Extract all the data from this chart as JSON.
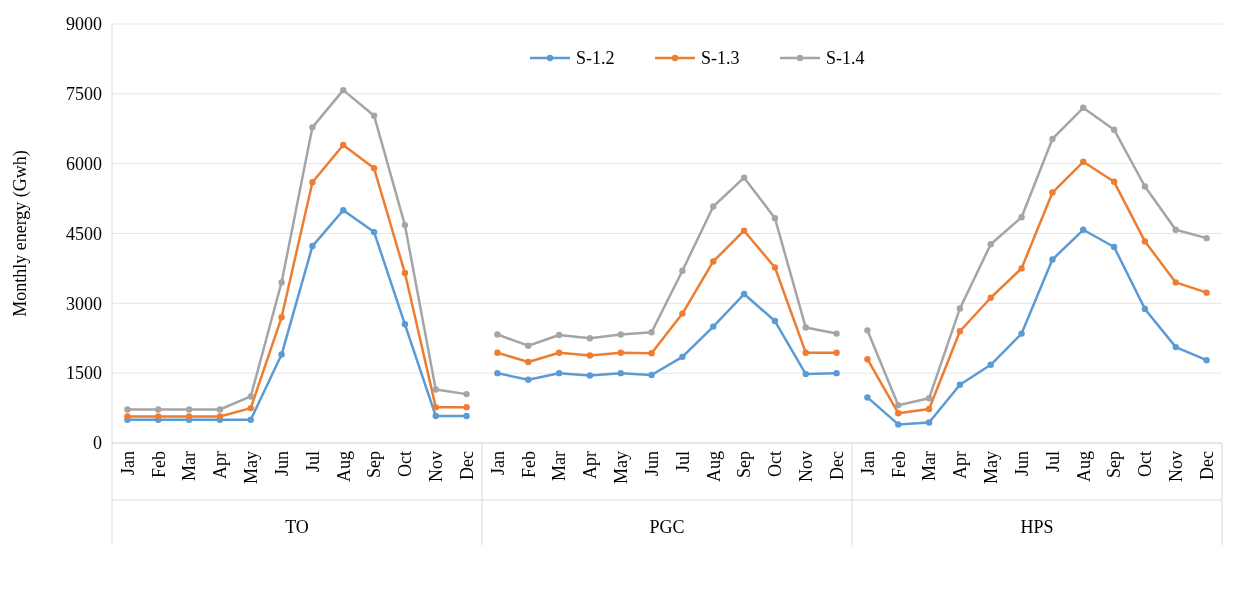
{
  "chart_data": [
    {
      "type": "line",
      "xlabel": "TO",
      "ylabel": "Monthly  energy (Gwh)",
      "categories": [
        "Jan",
        "Feb",
        "Mar",
        "Apr",
        "May",
        "Jun",
        "Jul",
        "Aug",
        "Sep",
        "Oct",
        "Nov",
        "Dec"
      ],
      "ylim": [
        0,
        9000
      ],
      "yticks": [
        0,
        1500,
        3000,
        4500,
        6000,
        7500,
        9000
      ],
      "grid": "y",
      "marker": "circle",
      "legend": false,
      "series": [
        {
          "color": "#5b9bd5",
          "values": [
            500,
            500,
            500,
            500,
            500,
            1900,
            4230,
            5000,
            4530,
            2550,
            580,
            580
          ]
        },
        {
          "color": "#ed7d31",
          "values": [
            570,
            570,
            570,
            570,
            750,
            2700,
            5600,
            6400,
            5900,
            3650,
            770,
            770
          ]
        },
        {
          "color": "#a5a5a5",
          "values": [
            720,
            720,
            720,
            720,
            1000,
            3450,
            6780,
            7580,
            7030,
            4680,
            1150,
            1050
          ]
        }
      ]
    },
    {
      "type": "line",
      "xlabel": "PGC",
      "categories": [
        "Jan",
        "Feb",
        "Mar",
        "Apr",
        "May",
        "Jun",
        "Jul",
        "Aug",
        "Sep",
        "Oct",
        "Nov",
        "Dec"
      ],
      "ylim": [
        0,
        9000
      ],
      "yticks": [
        0,
        1500,
        3000,
        4500,
        6000,
        7500,
        9000
      ],
      "grid": "y",
      "marker": "circle",
      "legend": "top",
      "tick_labels": "x",
      "series": [
        {
          "name": "S-1.2",
          "color": "#5b9bd5",
          "values": [
            1500,
            1360,
            1500,
            1450,
            1500,
            1460,
            1850,
            2500,
            3200,
            2620,
            1480,
            1500
          ]
        },
        {
          "name": "S-1.3",
          "color": "#ed7d31",
          "values": [
            1940,
            1740,
            1940,
            1880,
            1940,
            1930,
            2780,
            3900,
            4560,
            3770,
            1940,
            1940
          ]
        },
        {
          "name": "S-1.4",
          "color": "#a5a5a5",
          "values": [
            2330,
            2090,
            2320,
            2250,
            2330,
            2380,
            3700,
            5080,
            5700,
            4830,
            2480,
            2350
          ]
        }
      ]
    },
    {
      "type": "line",
      "xlabel": "HPS",
      "categories": [
        "Jan",
        "Feb",
        "Mar",
        "Apr",
        "May",
        "Jun",
        "Jul",
        "Aug",
        "Sep",
        "Oct",
        "Nov",
        "Dec"
      ],
      "ylim": [
        0,
        9000
      ],
      "yticks": [
        0,
        1500,
        3000,
        4500,
        6000,
        7500,
        9000
      ],
      "grid": "y",
      "marker": "circle",
      "legend": false,
      "tick_labels": "x",
      "series": [
        {
          "color": "#5b9bd5",
          "values": [
            980,
            400,
            440,
            1250,
            1680,
            2350,
            3940,
            4580,
            4210,
            2880,
            2060,
            1780
          ]
        },
        {
          "color": "#ed7d31",
          "values": [
            1800,
            640,
            730,
            2400,
            3120,
            3750,
            5380,
            6040,
            5610,
            4330,
            3450,
            3230
          ]
        },
        {
          "color": "#a5a5a5",
          "values": [
            2420,
            810,
            960,
            2890,
            4270,
            4850,
            6530,
            7200,
            6730,
            5510,
            4580,
            4400
          ]
        }
      ]
    }
  ]
}
